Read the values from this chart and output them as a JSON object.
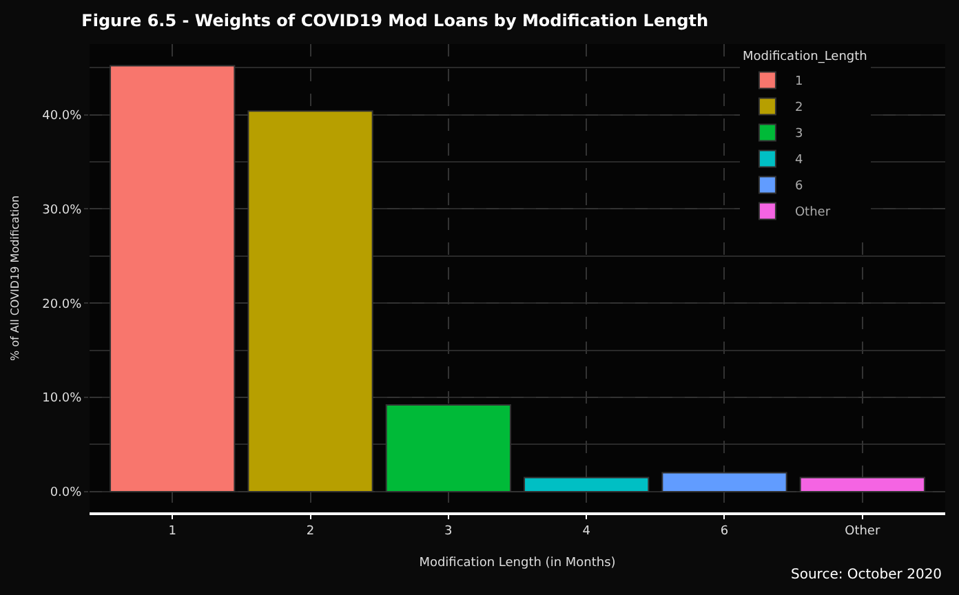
{
  "chart_data": {
    "type": "bar",
    "title": "Figure 6.5 - Weights of COVID19 Mod Loans by Modification Length",
    "xlabel": "Modification Length (in Months)",
    "ylabel": "% of All COVID19 Modification",
    "legend_title": "Modification_Length",
    "categories": [
      "1",
      "2",
      "3",
      "4",
      "6",
      "Other"
    ],
    "series": [
      {
        "name": "1",
        "color": "#f8766d",
        "values": [
          45.2,
          null,
          null,
          null,
          null,
          null
        ]
      },
      {
        "name": "2",
        "color": "#b79f00",
        "values": [
          null,
          40.4,
          null,
          null,
          null,
          null
        ]
      },
      {
        "name": "3",
        "color": "#00ba38",
        "values": [
          null,
          null,
          9.2,
          null,
          null,
          null
        ]
      },
      {
        "name": "4",
        "color": "#00bfc4",
        "values": [
          null,
          null,
          null,
          1.5,
          null,
          null
        ]
      },
      {
        "name": "6",
        "color": "#619cff",
        "values": [
          null,
          null,
          null,
          null,
          2.0,
          null
        ]
      },
      {
        "name": "Other",
        "color": "#f564e3",
        "values": [
          null,
          null,
          null,
          null,
          null,
          1.5
        ]
      }
    ],
    "ylim": [
      -2.2,
      47.5
    ],
    "yticks": [
      {
        "value": 0,
        "label": "0.0%"
      },
      {
        "value": 10,
        "label": "10.0%"
      },
      {
        "value": 20,
        "label": "20.0%"
      },
      {
        "value": 30,
        "label": "30.0%"
      },
      {
        "value": 40,
        "label": "40.0%"
      }
    ],
    "grid": true,
    "legend": "top right",
    "annotations": [
      "Source: October 2020"
    ]
  }
}
